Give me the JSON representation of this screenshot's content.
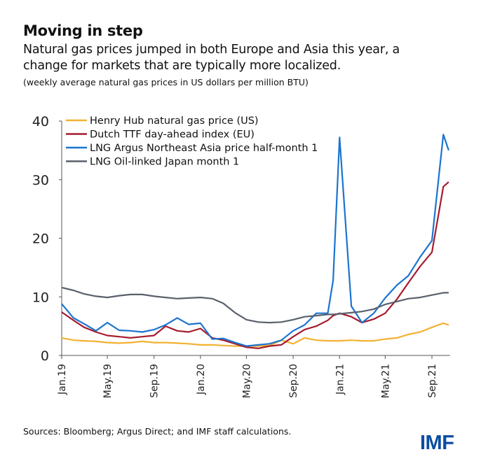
{
  "title": "Moving in step",
  "subtitle_lines": [
    "Natural gas prices jumped in both Europe and Asia this year, a",
    "change for markets that are typically more localized."
  ],
  "note": "(weekly average natural gas prices in US dollars per million BTU)",
  "source": "Sources: Bloomberg; Argus Direct; and IMF staff calculations.",
  "logo": "IMF",
  "chart_data": {
    "type": "line",
    "title": "Moving in step",
    "xlabel": "",
    "ylabel": "",
    "ylim": [
      0,
      40
    ],
    "yticks": [
      0,
      10,
      20,
      30,
      40
    ],
    "xticks": [
      {
        "date": "2019-01-01",
        "label": "Jan.19"
      },
      {
        "date": "2019-05-01",
        "label": "May.19"
      },
      {
        "date": "2019-09-01",
        "label": "Sep.19"
      },
      {
        "date": "2020-01-01",
        "label": "Jan.20"
      },
      {
        "date": "2020-05-01",
        "label": "May.20"
      },
      {
        "date": "2020-09-01",
        "label": "Sep.20"
      },
      {
        "date": "2021-01-01",
        "label": "Jan.21"
      },
      {
        "date": "2021-05-01",
        "label": "May.21"
      },
      {
        "date": "2021-09-01",
        "label": "Sep.21"
      }
    ],
    "grid": false,
    "legend": "top-left",
    "x": [
      "2019-01-01",
      "2019-02-01",
      "2019-03-01",
      "2019-04-01",
      "2019-05-01",
      "2019-06-01",
      "2019-07-01",
      "2019-08-01",
      "2019-09-01",
      "2019-10-01",
      "2019-11-01",
      "2019-12-01",
      "2020-01-01",
      "2020-02-01",
      "2020-03-01",
      "2020-04-01",
      "2020-05-01",
      "2020-06-01",
      "2020-07-01",
      "2020-08-01",
      "2020-09-01",
      "2020-10-01",
      "2020-11-01",
      "2020-12-01",
      "2020-12-15",
      "2021-01-01",
      "2021-02-01",
      "2021-03-01",
      "2021-04-01",
      "2021-05-01",
      "2021-06-01",
      "2021-07-01",
      "2021-08-01",
      "2021-09-01",
      "2021-10-01",
      "2021-10-15"
    ],
    "series": [
      {
        "name": "Henry Hub natural gas price (US)",
        "color": "#F2B134",
        "values": [
          3.0,
          2.6,
          2.5,
          2.4,
          2.2,
          2.1,
          2.2,
          2.4,
          2.2,
          2.2,
          2.1,
          2.0,
          1.8,
          1.8,
          1.7,
          1.6,
          1.6,
          1.6,
          1.7,
          2.6,
          2.0,
          3.0,
          2.6,
          2.5,
          2.5,
          2.5,
          2.6,
          2.5,
          2.5,
          2.8,
          3.0,
          3.6,
          4.0,
          4.8,
          5.5,
          5.2
        ]
      },
      {
        "name": "Dutch TTF day-ahead index (EU)",
        "color": "#A61B2E",
        "values": [
          7.4,
          6.0,
          4.8,
          4.0,
          3.4,
          3.2,
          3.0,
          3.2,
          3.4,
          5.0,
          4.2,
          4.0,
          4.6,
          3.0,
          2.6,
          2.0,
          1.4,
          1.2,
          1.6,
          1.8,
          3.2,
          4.4,
          5.0,
          6.0,
          6.8,
          7.2,
          6.6,
          5.6,
          6.2,
          7.2,
          9.6,
          12.4,
          15.2,
          17.6,
          28.8,
          29.6
        ]
      },
      {
        "name": "LNG Argus Northeast Asia price half-month 1",
        "color": "#1B74CF",
        "values": [
          8.8,
          6.4,
          5.4,
          4.2,
          5.6,
          4.3,
          4.2,
          4.0,
          4.4,
          5.2,
          6.4,
          5.3,
          5.5,
          2.8,
          2.9,
          2.2,
          1.6,
          1.8,
          2.0,
          2.6,
          4.2,
          5.2,
          7.2,
          7.2,
          12.8,
          37.2,
          8.4,
          5.6,
          7.2,
          9.8,
          12.0,
          13.6,
          16.8,
          19.6,
          37.7,
          35.0
        ]
      },
      {
        "name": "LNG Oil-linked Japan month 1",
        "color": "#5A616C",
        "values": [
          11.6,
          11.1,
          10.5,
          10.1,
          9.9,
          10.2,
          10.4,
          10.4,
          10.1,
          9.9,
          9.7,
          9.8,
          9.9,
          9.7,
          8.9,
          7.3,
          6.1,
          5.7,
          5.6,
          5.7,
          6.1,
          6.6,
          6.8,
          7.0,
          7.0,
          7.1,
          7.3,
          7.5,
          7.9,
          8.7,
          9.2,
          9.7,
          9.9,
          10.3,
          10.7,
          10.7
        ]
      }
    ]
  }
}
